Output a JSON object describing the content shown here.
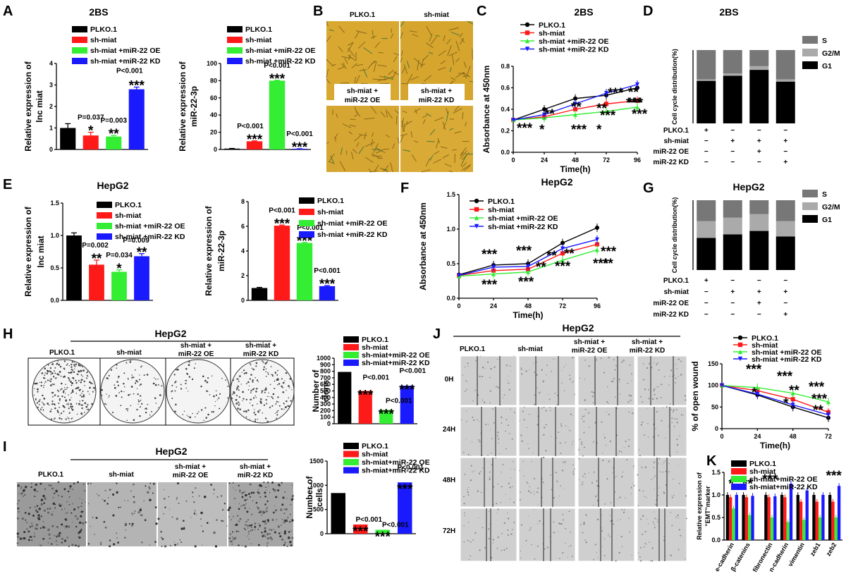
{
  "panel_labels": {
    "A": "A",
    "B": "B",
    "C": "C",
    "D": "D",
    "E": "E",
    "F": "F",
    "G": "G",
    "H": "H",
    "I": "I",
    "J": "J",
    "K": "K"
  },
  "colors": {
    "black": "#000000",
    "red": "#ff1a1a",
    "green": "#33ee33",
    "blue": "#1a1aff",
    "s_gray": "#777777",
    "g2m_gray": "#aaaaaa",
    "g1": "#000000",
    "culture_bg": "#d8a830"
  },
  "legend_groups": [
    "PLKO.1",
    "sh-miat",
    "sh-miat +miR-22 OE",
    "sh-miat +miR-22 KD"
  ],
  "legend_groups_small": [
    "PLKO.1",
    "sh-miat",
    "sh-miat+miR-22 OE",
    "sh-miat+miR-22 KD"
  ],
  "cell_line_2bs": "2BS",
  "cell_line_hepg2": "HepG2",
  "images_B": {
    "labels": [
      "PLKO.1",
      "sh-miat",
      "sh-miat +",
      "miR-22 OE",
      "sh-miat +",
      "miR-22 KD"
    ]
  },
  "colony_H": {
    "title": "HepG2",
    "labels": [
      "PLKO.1",
      "sh-miat",
      "sh-miat +",
      "miR-22 OE",
      "sh-miat +",
      "miR-22 KD"
    ]
  },
  "invasion_I": {
    "title": "HepG2",
    "labels": [
      "PLKO.1",
      "sh-miat",
      "sh-miat +",
      "miR-22 OE",
      "sh-miat +",
      "miR-22 KD"
    ]
  },
  "wound_J": {
    "title": "HepG2",
    "labels": [
      "PLKO.1",
      "sh-miat",
      "sh-miat +",
      "miR-22 OE",
      "sh-miat +",
      "miR-22 KD"
    ],
    "rows": [
      "0H",
      "24H",
      "48H",
      "72H"
    ]
  },
  "cycle_rows": {
    "names": [
      "PLKO.1",
      "sh-miat",
      "miR-22 OE",
      "miR-22 KD"
    ],
    "signs": [
      [
        "+",
        "−",
        "−",
        "−"
      ],
      [
        "−",
        "+",
        "+",
        "+"
      ],
      [
        "−",
        "−",
        "+",
        "−"
      ],
      [
        "−",
        "−",
        "−",
        "+"
      ]
    ]
  },
  "chart_data": [
    {
      "id": "A1",
      "type": "bar",
      "title": "2BS",
      "ylabel": "Relative expression of lnc miat",
      "ylim": [
        0,
        4
      ],
      "yticks": [
        0,
        1,
        2,
        3,
        4
      ],
      "categories": [
        "PLKO.1",
        "sh-miat",
        "sh-miat +miR-22 OE",
        "sh-miat +miR-22 KD"
      ],
      "values": [
        1.0,
        0.65,
        0.6,
        2.8
      ],
      "errors": [
        0.2,
        0.15,
        0.05,
        0.1
      ],
      "annotations": [
        {
          "bar": 1,
          "p": "P=0.037",
          "stars": "*"
        },
        {
          "bar": 2,
          "p": "P=0.003",
          "stars": "**"
        },
        {
          "bar": 3,
          "p": "P<0.001",
          "stars": "***"
        }
      ]
    },
    {
      "id": "A2",
      "type": "bar",
      "title": "",
      "ylabel": "Relative expression of miR-22-3p",
      "ylim": [
        0,
        100
      ],
      "yticks": [
        0,
        20,
        40,
        60,
        80,
        100
      ],
      "categories": [
        "PLKO.1",
        "sh-miat",
        "sh-miat +miR-22 OE",
        "sh-miat +miR-22 KD"
      ],
      "values": [
        1.0,
        9.5,
        80,
        0.8
      ],
      "errors": [
        0.2,
        0.5,
        0.5,
        0.1
      ],
      "annotations": [
        {
          "bar": 1,
          "p": "P<0.001",
          "stars": "***"
        },
        {
          "bar": 2,
          "p": "P<0.001",
          "stars": "***"
        },
        {
          "bar": 3,
          "p": "P<0.001",
          "stars": "***"
        }
      ]
    },
    {
      "id": "C",
      "type": "line",
      "title": "2BS",
      "xlabel": "Time(h)",
      "ylabel": "Absorbance at 450nm",
      "x": [
        0,
        24,
        48,
        72,
        96
      ],
      "xlim": [
        0,
        96
      ],
      "ylim": [
        0,
        0.8
      ],
      "yticks": [
        0,
        0.2,
        0.4,
        0.6,
        0.8
      ],
      "series": [
        {
          "name": "PLKO.1",
          "values": [
            0.3,
            0.4,
            0.5,
            0.53,
            0.6
          ]
        },
        {
          "name": "sh-miat",
          "values": [
            0.3,
            0.33,
            0.4,
            0.45,
            0.48
          ]
        },
        {
          "name": "sh-miat +miR-22 OE",
          "values": [
            0.3,
            0.32,
            0.35,
            0.38,
            0.42
          ]
        },
        {
          "name": "sh-miat +miR-22 KD",
          "values": [
            0.3,
            0.35,
            0.45,
            0.55,
            0.63
          ]
        }
      ],
      "annotations": [
        "*",
        "***",
        "**",
        "**",
        "***",
        "**",
        "***",
        "*",
        "***",
        "***",
        "**",
        "***",
        "***"
      ]
    },
    {
      "id": "D",
      "type": "bar",
      "stacked": true,
      "title": "2BS",
      "ylabel": "Cell cycle distribution(%)",
      "ylim": [
        0,
        100
      ],
      "series": [
        {
          "name": "G1",
          "values": [
            58,
            65,
            73,
            57
          ]
        },
        {
          "name": "G2/M",
          "values": [
            2,
            3,
            5,
            3
          ]
        },
        {
          "name": "S",
          "values": [
            40,
            32,
            22,
            40
          ]
        }
      ]
    },
    {
      "id": "E1",
      "type": "bar",
      "title": "HepG2",
      "ylabel": "Relative expression of lnc miat",
      "ylim": [
        0,
        1.5
      ],
      "yticks": [
        0.0,
        0.5,
        1.0,
        1.5
      ],
      "categories": [
        "PLKO.1",
        "sh-miat",
        "sh-miat +miR-22 OE",
        "sh-miat +miR-22 KD"
      ],
      "values": [
        1.0,
        0.55,
        0.44,
        0.68
      ],
      "errors": [
        0.04,
        0.07,
        0.03,
        0.04
      ],
      "annotations": [
        {
          "bar": 1,
          "p": "P=0.002",
          "stars": "**"
        },
        {
          "bar": 2,
          "p": "P=0.034",
          "stars": "*"
        },
        {
          "bar": 3,
          "p": "P=0.009",
          "stars": "**"
        }
      ]
    },
    {
      "id": "E2",
      "type": "bar",
      "title": "",
      "ylabel": "Relative expression of miR-22-3p",
      "ylim": [
        0,
        8
      ],
      "yticks": [
        0,
        2,
        4,
        6,
        8
      ],
      "categories": [
        "PLKO.1",
        "sh-miat",
        "sh-miat +miR-22 OE",
        "sh-miat +miR-22 KD"
      ],
      "values": [
        1.0,
        6.05,
        4.65,
        1.15
      ],
      "errors": [
        0.05,
        0.05,
        0.05,
        0.05
      ],
      "annotations": [
        {
          "bar": 1,
          "p": "P<0.001",
          "stars": "***"
        },
        {
          "bar": 2,
          "p": "P<0.001",
          "stars": "***"
        },
        {
          "bar": 3,
          "p": "P<0.001",
          "stars": "***"
        }
      ]
    },
    {
      "id": "F",
      "type": "line",
      "title": "HepG2",
      "xlabel": "Time(h)",
      "ylabel": "Absorbance at 450nm",
      "x": [
        0,
        24,
        48,
        72,
        96
      ],
      "xlim": [
        0,
        96
      ],
      "ylim": [
        0,
        1.5
      ],
      "yticks": [
        0.0,
        0.5,
        1.0,
        1.5
      ],
      "series": [
        {
          "name": "PLKO.1",
          "values": [
            0.34,
            0.48,
            0.5,
            0.8,
            1.02
          ]
        },
        {
          "name": "sh-miat",
          "values": [
            0.33,
            0.4,
            0.42,
            0.65,
            0.78
          ]
        },
        {
          "name": "sh-miat +miR-22 OE",
          "values": [
            0.32,
            0.35,
            0.38,
            0.55,
            0.7
          ]
        },
        {
          "name": "sh-miat +miR-22 KD",
          "values": [
            0.33,
            0.45,
            0.46,
            0.72,
            0.85
          ]
        }
      ],
      "annotations": [
        "***",
        "***",
        "***",
        "***",
        "**",
        "**",
        "***",
        "**",
        "***",
        "**",
        "***"
      ]
    },
    {
      "id": "G",
      "type": "bar",
      "stacked": true,
      "title": "HepG2",
      "ylabel": "Cell cycle distribution(%)",
      "ylim": [
        0,
        100
      ],
      "series": [
        {
          "name": "G1",
          "values": [
            46,
            51,
            56,
            48
          ]
        },
        {
          "name": "G2/M",
          "values": [
            24,
            24,
            24,
            22
          ]
        },
        {
          "name": "S",
          "values": [
            30,
            25,
            20,
            30
          ]
        }
      ]
    },
    {
      "id": "H",
      "type": "bar",
      "title": "",
      "ylabel": "Number of clons",
      "ylim": [
        0,
        1000
      ],
      "yticks": [
        0,
        100,
        200,
        300,
        400,
        500,
        600,
        700,
        800,
        900,
        1000
      ],
      "categories": [
        "PLKO.1",
        "sh-miat",
        "sh-miat+miR-22 OE",
        "sh-miat+miR-22 KD"
      ],
      "values": [
        790,
        500,
        210,
        580
      ],
      "annotations": [
        {
          "bar": 1,
          "p": "P<0.001",
          "stars": "***"
        },
        {
          "bar": 2,
          "p": "P<0.001",
          "stars": "***"
        },
        {
          "bar": 3,
          "p": "P<0.001",
          "stars": "***"
        }
      ]
    },
    {
      "id": "I",
      "type": "bar",
      "title": "",
      "ylabel": "Number of cells",
      "ylim": [
        0,
        1500
      ],
      "yticks": [
        0,
        500,
        1000,
        1500
      ],
      "categories": [
        "PLKO.1",
        "sh-miat",
        "sh-miat+miR-22 OE",
        "sh-miat+miR-22 KD"
      ],
      "values": [
        840,
        190,
        80,
        1060
      ],
      "annotations": [
        {
          "bar": 1,
          "p": "P<0.001",
          "stars": "***"
        },
        {
          "bar": 2,
          "p": "P<0.001",
          "stars": "***"
        },
        {
          "bar": 3,
          "p": "P<0.001",
          "stars": "***"
        }
      ]
    },
    {
      "id": "J",
      "type": "line",
      "title": "",
      "xlabel": "Time(h)",
      "ylabel": "% of open wound",
      "x": [
        0,
        24,
        48,
        72
      ],
      "xlim": [
        0,
        72
      ],
      "ylim": [
        0,
        150
      ],
      "yticks": [
        0,
        50,
        100,
        150
      ],
      "series": [
        {
          "name": "PLKO.1",
          "values": [
            100,
            78,
            50,
            25
          ]
        },
        {
          "name": "sh-miat",
          "values": [
            100,
            88,
            68,
            38
          ]
        },
        {
          "name": "sh-miat +miR-22 OE",
          "values": [
            100,
            95,
            82,
            62
          ]
        },
        {
          "name": "sh-miat +miR-22 KD",
          "values": [
            100,
            80,
            55,
            32
          ]
        }
      ],
      "annotations": [
        "***",
        "*",
        "***",
        "**",
        "*",
        "***",
        "***",
        "**"
      ]
    },
    {
      "id": "K",
      "type": "bar",
      "title": "",
      "ylabel": "Relative expression of \"EMT\"marker",
      "ylim": [
        0,
        1.5
      ],
      "yticks": [
        0.0,
        0.5,
        1.0,
        1.5
      ],
      "categories": [
        "e-cadherin",
        "β-catenins",
        "fibronectin",
        "n-cadherin",
        "vimentin",
        "zeb1",
        "zeb2"
      ],
      "series": [
        {
          "name": "PLKO.1",
          "values": [
            1.0,
            1.0,
            1.0,
            1.0,
            1.0,
            1.0,
            1.0
          ]
        },
        {
          "name": "sh-miat",
          "values": [
            0.95,
            0.95,
            0.95,
            0.95,
            0.85,
            0.85,
            0.85
          ]
        },
        {
          "name": "sh-miat+miR-22 OE",
          "values": [
            0.7,
            0.55,
            0.5,
            0.4,
            0.45,
            0.5,
            0.5
          ]
        },
        {
          "name": "sh-miat+miR-22 KD",
          "values": [
            1.0,
            0.98,
            0.97,
            1.25,
            1.1,
            1.0,
            1.2
          ]
        }
      ],
      "annotations": [
        "*",
        "**",
        "***",
        "***"
      ]
    }
  ]
}
